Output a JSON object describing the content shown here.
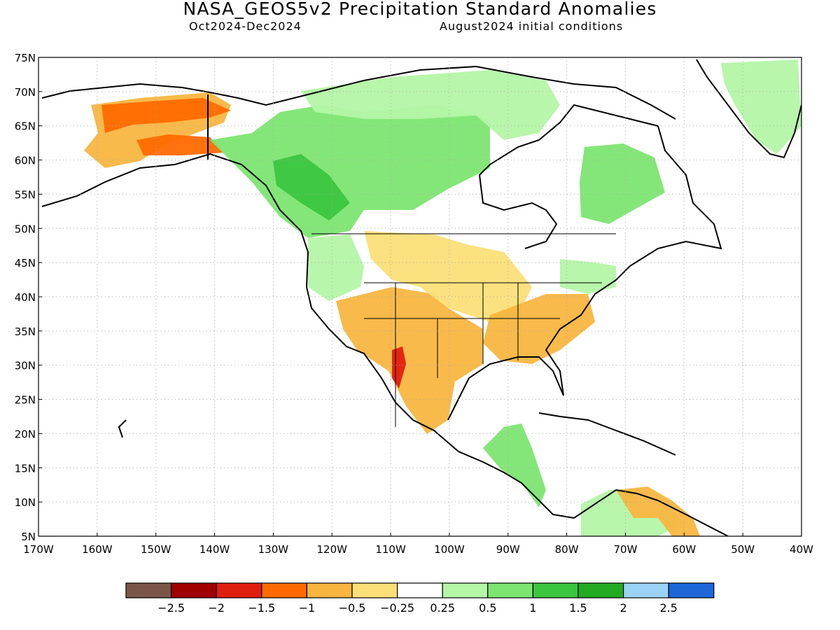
{
  "title": "NASA_GEOS5v2 Precipitation Standard Anomalies",
  "subtitle_left": "Oct2024-Dec2024",
  "subtitle_right": "August2024 initial conditions",
  "lat_labels": [
    "75N",
    "70N",
    "65N",
    "60N",
    "55N",
    "50N",
    "45N",
    "40N",
    "35N",
    "30N",
    "25N",
    "20N",
    "15N",
    "10N",
    "5N"
  ],
  "lon_labels": [
    "170W",
    "160W",
    "150W",
    "140W",
    "130W",
    "120W",
    "110W",
    "100W",
    "90W",
    "80W",
    "70W",
    "60W",
    "50W",
    "40W"
  ],
  "colorbar": {
    "colors": [
      "#7a5648",
      "#a00000",
      "#e01e10",
      "#ff6a00",
      "#f8b640",
      "#fbdf78",
      "#ffffff",
      "#b4f5a6",
      "#7de571",
      "#3bc640",
      "#22aa22",
      "#9bd2f5",
      "#1c66d8"
    ],
    "labels": [
      "-2.5",
      "-2",
      "-1.5",
      "-1",
      "-0.5",
      "-0.25",
      "0.25",
      "0.5",
      "1",
      "1.5",
      "2",
      "2.5"
    ]
  },
  "map_bounds": {
    "lon_min": -170,
    "lon_max": -40,
    "lat_min": 5,
    "lat_max": 75
  },
  "anomaly_regions": [
    {
      "name": "alaska-dry",
      "category": "-0.5"
    },
    {
      "name": "alaska-strong-dry",
      "category": "-1"
    },
    {
      "name": "western-canada-wet",
      "category": "1"
    },
    {
      "name": "nw-canada-moderate-wet",
      "category": "1.5"
    },
    {
      "name": "central-canada-wet",
      "category": "0.5"
    },
    {
      "name": "quebec-labrador-wet",
      "category": "1"
    },
    {
      "name": "greenland-wet",
      "category": "0.5"
    },
    {
      "name": "pacific-northwest-wet",
      "category": "0.5"
    },
    {
      "name": "southwest-us-dry",
      "category": "-0.5"
    },
    {
      "name": "mexico-strong-dry",
      "category": "-1.5"
    },
    {
      "name": "central-us-dry",
      "category": "-0.25"
    },
    {
      "name": "southeast-us-dry",
      "category": "-0.5"
    },
    {
      "name": "northeast-wet",
      "category": "0.5"
    },
    {
      "name": "central-america-wet",
      "category": "1"
    },
    {
      "name": "colombia-wet",
      "category": "0.5"
    },
    {
      "name": "venezuela-dry",
      "category": "-0.5"
    }
  ]
}
